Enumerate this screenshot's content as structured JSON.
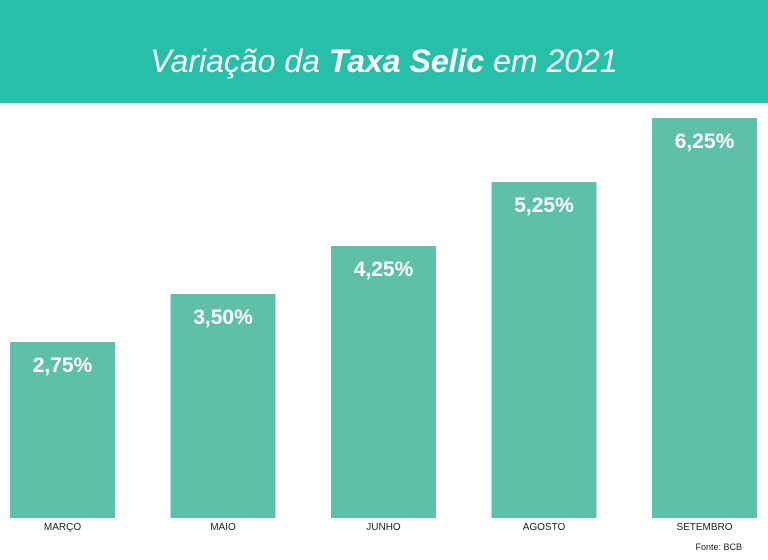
{
  "chart_data": {
    "type": "bar",
    "title_parts": [
      "Variação da",
      "Taxa Selic",
      "em 2021"
    ],
    "categories": [
      "MARÇO",
      "MAIO",
      "JUNHO",
      "AGOSTO",
      "SETEMBRO"
    ],
    "values": [
      2.75,
      3.5,
      4.25,
      5.25,
      6.25
    ],
    "value_labels": [
      "2,75%",
      "3,50%",
      "4,25%",
      "5,25%",
      "6,25%"
    ],
    "color": "#5fc0aa",
    "ylim": [
      0,
      6.25
    ],
    "source": "Fonte: BCB"
  }
}
